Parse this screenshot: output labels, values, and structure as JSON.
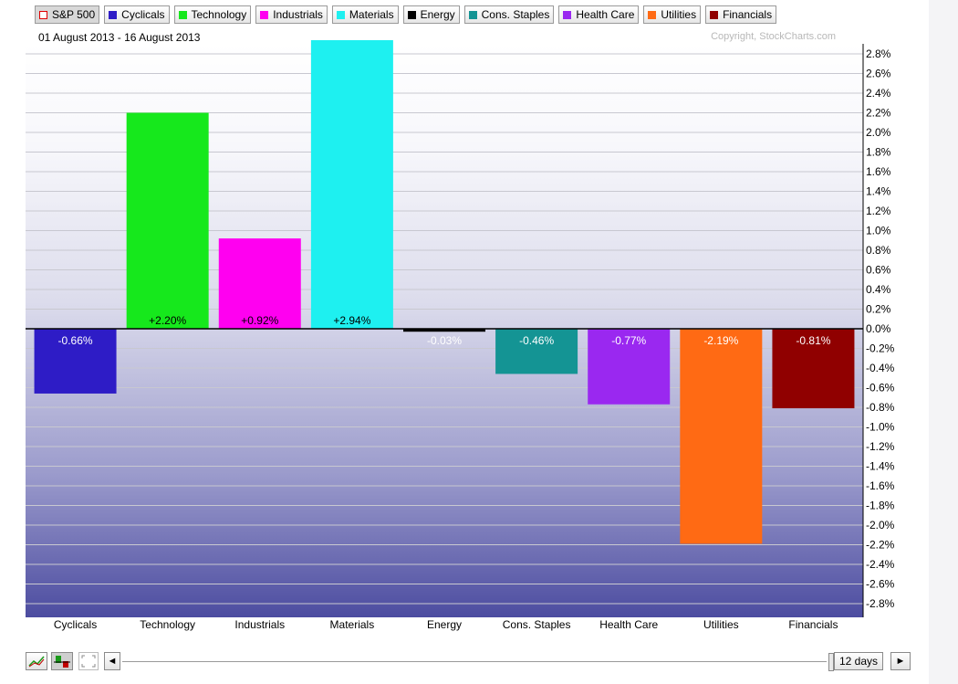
{
  "legend": [
    {
      "label": "S&P 500",
      "color": "#e00000",
      "hollow": true,
      "selected": true
    },
    {
      "label": "Cyclicals",
      "color": "#2e1cc6"
    },
    {
      "label": "Technology",
      "color": "#16e81c"
    },
    {
      "label": "Industrials",
      "color": "#ff00f0"
    },
    {
      "label": "Materials",
      "color": "#1ef0f0"
    },
    {
      "label": "Energy",
      "color": "#000000"
    },
    {
      "label": "Cons. Staples",
      "color": "#149494"
    },
    {
      "label": "Health Care",
      "color": "#9a28f0"
    },
    {
      "label": "Utilities",
      "color": "#ff6a14"
    },
    {
      "label": "Financials",
      "color": "#900000"
    }
  ],
  "header": {
    "date_range": "01 August 2013 - 16 August 2013",
    "copyright": "Copyright, StockCharts.com"
  },
  "chart_data": {
    "type": "bar",
    "categories": [
      "Cyclicals",
      "Technology",
      "Industrials",
      "Materials",
      "Energy",
      "Cons. Staples",
      "Health Care",
      "Utilities",
      "Financials"
    ],
    "values": [
      -0.66,
      2.2,
      0.92,
      2.94,
      -0.03,
      -0.46,
      -0.77,
      -2.19,
      -0.81
    ],
    "value_labels": [
      "-0.66%",
      "+2.20%",
      "+0.92%",
      "+2.94%",
      "-0.03%",
      "-0.46%",
      "-0.77%",
      "-2.19%",
      "-0.81%"
    ],
    "colors": [
      "#2e1cc6",
      "#16e81c",
      "#ff00f0",
      "#1ef0f0",
      "#000000",
      "#149494",
      "#9a28f0",
      "#ff6a14",
      "#900000"
    ],
    "label_colors": [
      "#ffffff",
      "#000000",
      "#000000",
      "#000000",
      "#ffffff",
      "#ffffff",
      "#ffffff",
      "#ffffff",
      "#ffffff"
    ],
    "y_ticks": [
      2.8,
      2.6,
      2.4,
      2.2,
      2.0,
      1.8,
      1.6,
      1.4,
      1.2,
      1.0,
      0.8,
      0.6,
      0.4,
      0.2,
      0.0,
      -0.2,
      -0.4,
      -0.6,
      -0.8,
      -1.0,
      -1.2,
      -1.4,
      -1.6,
      -1.8,
      -2.0,
      -2.2,
      -2.4,
      -2.6,
      -2.8
    ],
    "y_tick_labels": [
      "2.8%",
      "2.6%",
      "2.4%",
      "2.2%",
      "2.0%",
      "1.8%",
      "1.6%",
      "1.4%",
      "1.2%",
      "1.0%",
      "0.8%",
      "0.6%",
      "0.4%",
      "0.2%",
      "0.0%",
      "-0.2%",
      "-0.4%",
      "-0.6%",
      "-0.8%",
      "-1.0%",
      "-1.2%",
      "-1.4%",
      "-1.6%",
      "-1.8%",
      "-2.0%",
      "-2.2%",
      "-2.4%",
      "-2.6%",
      "-2.8%"
    ],
    "ylim": [
      -2.9,
      2.95
    ],
    "grid": true,
    "title": "",
    "xlabel": "",
    "ylabel": ""
  },
  "toolbar": {
    "days_label": "12 days",
    "left_arrow": "◄",
    "right_arrow": "►",
    "icons": [
      "line-chart-icon",
      "bar-chart-icon",
      "fullscreen-icon"
    ]
  }
}
